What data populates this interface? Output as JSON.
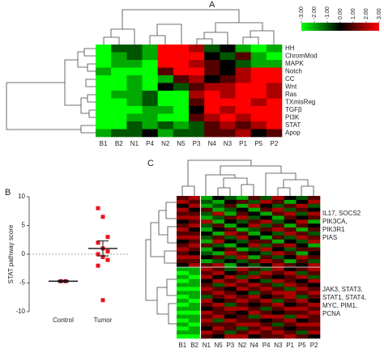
{
  "chart_data": [
    {
      "type": "heatmap",
      "panel": "A",
      "columns": [
        "B1",
        "B2",
        "N1",
        "P4",
        "N2",
        "N5",
        "P3",
        "N4",
        "N3",
        "P1",
        "P5",
        "P2"
      ],
      "rows": [
        "HH",
        "ChromMod",
        "MAPK",
        "Notch",
        "CC",
        "Wnt",
        "Ras",
        "TXmisReg",
        "TGFβ",
        "PI3K",
        "STAT",
        "Apop"
      ],
      "values": [
        [
          -3,
          -1,
          -1,
          -2,
          3,
          3,
          2,
          -1,
          0,
          -2,
          -3,
          -2
        ],
        [
          -3,
          -2,
          -1,
          -2,
          3,
          3,
          3,
          0,
          -1,
          1,
          -2,
          -3
        ],
        [
          -3,
          -2,
          -2,
          -3,
          3,
          3,
          2,
          1,
          0,
          -1,
          -2,
          -2
        ],
        [
          -2,
          -3,
          -3,
          -3,
          1,
          3,
          3,
          1,
          0,
          2,
          3,
          3
        ],
        [
          -3,
          -3,
          -2,
          -3,
          -2,
          1,
          2,
          0,
          1,
          2,
          3,
          3
        ],
        [
          -3,
          -3,
          -2,
          -3,
          0,
          -1,
          1,
          2,
          2,
          3,
          3,
          2
        ],
        [
          -3,
          -2,
          -2,
          -1,
          -3,
          -3,
          2,
          3,
          2,
          3,
          3,
          2
        ],
        [
          -3,
          -3,
          -2,
          -1,
          -3,
          -3,
          1,
          3,
          3,
          3,
          2,
          3
        ],
        [
          -3,
          -3,
          -3,
          -2,
          -2,
          -3,
          0,
          3,
          2,
          3,
          3,
          3
        ],
        [
          -3,
          -3,
          -2,
          -2,
          -3,
          -3,
          1,
          2,
          3,
          2,
          3,
          3
        ],
        [
          -3,
          -3,
          -1,
          -2,
          -1,
          -2,
          -1,
          1,
          2,
          1,
          2,
          3
        ],
        [
          -2,
          -1,
          -1,
          0,
          -2,
          -1,
          -1,
          1,
          1,
          2,
          0,
          1
        ]
      ],
      "clim": [
        -3,
        3
      ],
      "colors": {
        "low": "#00ff00",
        "mid": "#000000",
        "high": "#ff0000"
      },
      "colorbar_ticks": [
        {
          "value": -3,
          "label": "-3.00"
        },
        {
          "value": -2,
          "label": "-2.00"
        },
        {
          "value": -1,
          "label": "-1.00"
        },
        {
          "value": 0,
          "label": "0.00"
        },
        {
          "value": 1,
          "label": "1.00"
        },
        {
          "value": 2,
          "label": "2.00"
        },
        {
          "value": 3,
          "label": "3.00"
        }
      ]
    },
    {
      "type": "strip",
      "panel": "B",
      "y_label": "STAT pathway score",
      "categories": [
        "Control",
        "Tumor"
      ],
      "series": [
        {
          "name": "Control",
          "color": "#b0141c",
          "values": [
            -4.7,
            -4.7
          ],
          "mean": -4.7,
          "error": 0.1
        },
        {
          "name": "Tumor",
          "color": "#e8141c",
          "values": [
            8,
            6.5,
            3,
            2,
            1,
            0.5,
            0,
            -0.5,
            -1,
            -2,
            -8
          ],
          "mean": 1,
          "error": 1.3
        }
      ],
      "ylim": [
        -10,
        10
      ],
      "yticks": [
        -10,
        -5,
        0,
        5,
        10
      ],
      "reference_line": 0
    },
    {
      "type": "heatmap",
      "panel": "C",
      "columns": [
        "B1",
        "B2",
        "N1",
        "N5",
        "P3",
        "N2",
        "N4",
        "P4",
        "N3",
        "P1",
        "P5",
        "P2"
      ],
      "annotations": [
        [
          "IL17, SOCS2",
          "PIK3CA,",
          "PIK3R1",
          "PIAS"
        ],
        [
          "JAK3, STAT3,",
          "STAT1, STAT4,",
          "MYC, PIM1,",
          "PCNA"
        ]
      ],
      "values": [
        [
          1,
          2,
          -2,
          0,
          -1,
          -2,
          1,
          -1,
          2,
          0,
          -1,
          1
        ],
        [
          2,
          1,
          -1,
          -2,
          0,
          1,
          -1,
          2,
          1,
          -2,
          0,
          2
        ],
        [
          0,
          2,
          -2,
          -1,
          1,
          -2,
          2,
          0,
          -1,
          1,
          2,
          -1
        ],
        [
          2,
          0,
          1,
          -2,
          -1,
          0,
          -2,
          1,
          2,
          -1,
          1,
          0
        ],
        [
          1,
          1,
          -1,
          2,
          -2,
          1,
          0,
          -2,
          1,
          2,
          -1,
          2
        ],
        [
          2,
          2,
          -2,
          -1,
          1,
          2,
          -1,
          0,
          -2,
          1,
          0,
          1
        ],
        [
          0,
          1,
          2,
          -2,
          0,
          -1,
          1,
          2,
          -1,
          0,
          2,
          -2
        ],
        [
          1,
          2,
          -1,
          1,
          -2,
          0,
          2,
          -1,
          1,
          -2,
          1,
          0
        ],
        [
          2,
          0,
          -2,
          0,
          1,
          -2,
          -1,
          1,
          2,
          1,
          -2,
          1
        ],
        [
          1,
          1,
          0,
          -2,
          2,
          1,
          -2,
          0,
          -1,
          2,
          1,
          -1
        ],
        [
          2,
          2,
          -1,
          1,
          -1,
          2,
          0,
          -2,
          1,
          -1,
          2,
          1
        ],
        [
          0,
          1,
          -2,
          2,
          0,
          -1,
          1,
          1,
          -2,
          0,
          -1,
          2
        ],
        [
          1,
          2,
          1,
          -1,
          -2,
          0,
          2,
          -1,
          1,
          2,
          0,
          -2
        ],
        [
          2,
          1,
          -2,
          0,
          1,
          -2,
          -1,
          2,
          0,
          -1,
          1,
          1
        ],
        [
          1,
          0,
          -1,
          -2,
          2,
          1,
          0,
          -1,
          2,
          1,
          -2,
          0
        ],
        [
          2,
          2,
          0,
          1,
          -1,
          2,
          -2,
          1,
          -1,
          0,
          2,
          1
        ],
        [
          1,
          1,
          -2,
          -1,
          0,
          -1,
          1,
          2,
          1,
          -2,
          1,
          -1
        ],
        [
          0,
          2,
          1,
          2,
          -2,
          0,
          -1,
          0,
          2,
          1,
          0,
          2
        ],
        [
          -2,
          -2,
          2,
          1,
          -1,
          2,
          1,
          -1,
          2,
          0,
          1,
          2
        ],
        [
          -3,
          -2,
          1,
          2,
          0,
          1,
          -1,
          2,
          1,
          2,
          -1,
          1
        ],
        [
          -2,
          -3,
          2,
          0,
          2,
          -1,
          2,
          1,
          0,
          1,
          2,
          -1
        ],
        [
          -3,
          -2,
          0,
          2,
          1,
          2,
          0,
          -1,
          2,
          1,
          0,
          2
        ],
        [
          -2,
          -2,
          1,
          -1,
          2,
          1,
          2,
          1,
          -1,
          2,
          1,
          0
        ],
        [
          -3,
          -3,
          2,
          1,
          0,
          2,
          1,
          2,
          1,
          -1,
          2,
          1
        ],
        [
          -2,
          -2,
          1,
          2,
          1,
          0,
          -1,
          1,
          2,
          2,
          1,
          2
        ],
        [
          -3,
          -2,
          -1,
          1,
          2,
          1,
          2,
          0,
          1,
          2,
          -1,
          1
        ],
        [
          -2,
          -3,
          2,
          0,
          1,
          2,
          1,
          2,
          -1,
          1,
          2,
          0
        ],
        [
          -3,
          -2,
          1,
          2,
          -1,
          1,
          0,
          1,
          2,
          0,
          1,
          2
        ],
        [
          -2,
          -2,
          0,
          1,
          2,
          2,
          1,
          -1,
          1,
          2,
          2,
          1
        ],
        [
          -3,
          -3,
          2,
          1,
          1,
          0,
          2,
          1,
          0,
          1,
          1,
          2
        ],
        [
          -2,
          -2,
          1,
          2,
          0,
          1,
          -1,
          2,
          2,
          -1,
          2,
          1
        ],
        [
          -3,
          -2,
          2,
          -1,
          2,
          1,
          1,
          0,
          1,
          2,
          0,
          1
        ],
        [
          -2,
          -3,
          1,
          1,
          1,
          2,
          2,
          1,
          -1,
          1,
          2,
          2
        ],
        [
          -3,
          -2,
          0,
          2,
          1,
          -1,
          1,
          2,
          1,
          0,
          1,
          1
        ],
        [
          -2,
          -2,
          2,
          1,
          -1,
          1,
          2,
          1,
          2,
          1,
          -1,
          2
        ],
        [
          -3,
          -3,
          1,
          0,
          2,
          2,
          0,
          1,
          1,
          2,
          1,
          0
        ]
      ],
      "clim": [
        -3,
        3
      ],
      "colors": {
        "low": "#00ff00",
        "mid": "#000000",
        "high": "#ff0000"
      }
    }
  ]
}
